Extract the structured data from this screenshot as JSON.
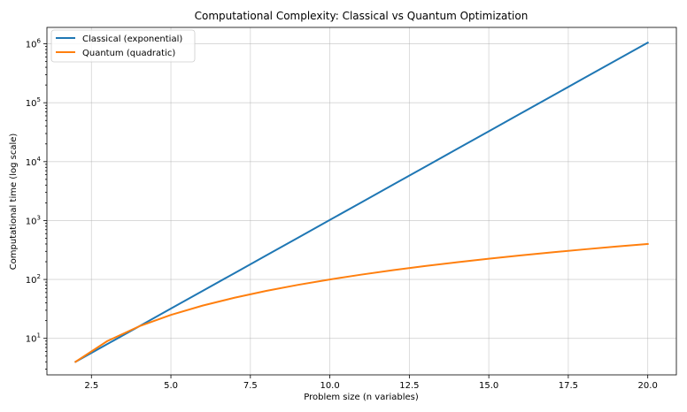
{
  "chart_data": {
    "type": "line",
    "title": "Computational Complexity: Classical vs Quantum Optimization",
    "xlabel": "Problem size (n variables)",
    "ylabel": "Computational time (log scale)",
    "yscale": "log",
    "xlim": [
      1.1,
      20.9
    ],
    "ylim": [
      2.4,
      1900000.0
    ],
    "xticks": [
      2.5,
      5.0,
      7.5,
      10.0,
      12.5,
      15.0,
      17.5,
      20.0
    ],
    "xtick_labels": [
      "2.5",
      "5.0",
      "7.5",
      "10.0",
      "12.5",
      "15.0",
      "17.5",
      "20.0"
    ],
    "ytick_exponents": [
      1,
      2,
      3,
      4,
      5,
      6
    ],
    "ytick_base": "10",
    "grid": true,
    "legend_position": "top-left",
    "x": [
      2,
      3,
      4,
      5,
      6,
      7,
      8,
      9,
      10,
      11,
      12,
      13,
      14,
      15,
      16,
      17,
      18,
      19,
      20
    ],
    "series": [
      {
        "name": "Classical (exponential)",
        "color": "#1f77b4",
        "values": [
          4,
          8,
          16,
          32,
          64,
          128,
          256,
          512,
          1024,
          2048,
          4096,
          8192,
          16384,
          32768,
          65536,
          131072,
          262144,
          524288,
          1048576
        ]
      },
      {
        "name": "Quantum (quadratic)",
        "color": "#ff7f0e",
        "values": [
          4,
          9,
          16,
          25,
          36,
          49,
          64,
          81,
          100,
          121,
          144,
          169,
          196,
          225,
          256,
          289,
          324,
          361,
          400
        ]
      }
    ]
  }
}
